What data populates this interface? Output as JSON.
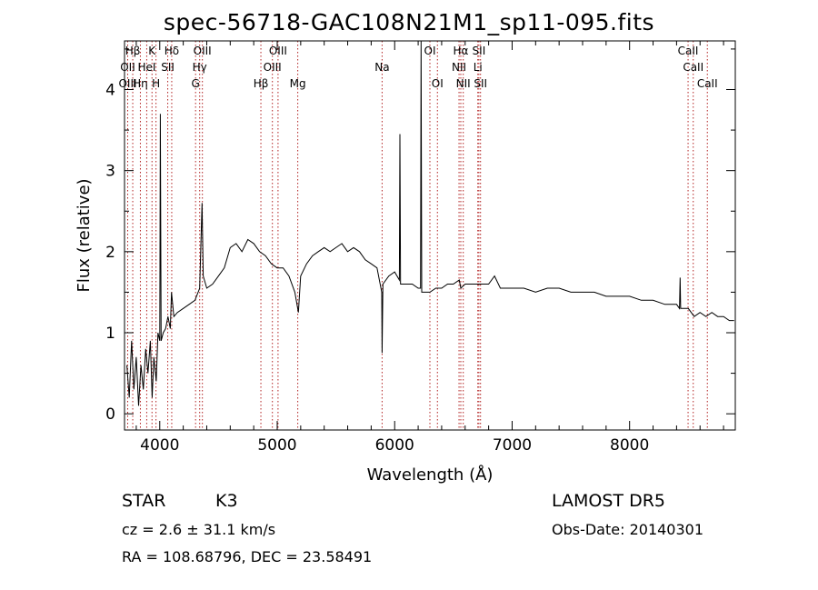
{
  "title": "spec-56718-GAC108N21M1_sp11-095.fits",
  "info": {
    "object_class": "STAR",
    "subclass": "K3",
    "survey": "LAMOST DR5",
    "cz": "cz = 2.6 ± 31.1 km/s",
    "obs_date": "Obs-Date: 20140301",
    "coords": "RA = 108.68796, DEC =  23.58491"
  },
  "colors": {
    "spectrum": "#000000",
    "lines": "#b22222",
    "axes": "#000000"
  },
  "chart_data": {
    "type": "line",
    "title": "spec-56718-GAC108N21M1_sp11-095.fits",
    "xlabel": "Wavelength (Å)",
    "ylabel": "Flux (relative)",
    "xlim": [
      3700,
      8900
    ],
    "ylim": [
      -0.2,
      4.6
    ],
    "xticks": [
      4000,
      5000,
      6000,
      7000,
      8000
    ],
    "yticks": [
      0,
      1,
      2,
      3,
      4
    ],
    "grid": false,
    "series": [
      {
        "values": [
          [
            3720,
            0.6
          ],
          [
            3740,
            0.2
          ],
          [
            3760,
            0.9
          ],
          [
            3780,
            0.3
          ],
          [
            3800,
            0.7
          ],
          [
            3820,
            0.1
          ],
          [
            3840,
            0.6
          ],
          [
            3860,
            0.3
          ],
          [
            3880,
            0.8
          ],
          [
            3900,
            0.5
          ],
          [
            3920,
            0.9
          ],
          [
            3935,
            0.2
          ],
          [
            3950,
            0.7
          ],
          [
            3970,
            0.4
          ],
          [
            3985,
            1.0
          ],
          [
            4000,
            0.9
          ],
          [
            4005,
            3.7
          ],
          [
            4012,
            0.9
          ],
          [
            4030,
            1.0
          ],
          [
            4050,
            1.05
          ],
          [
            4070,
            1.2
          ],
          [
            4090,
            1.05
          ],
          [
            4100,
            1.5
          ],
          [
            4120,
            1.2
          ],
          [
            4150,
            1.25
          ],
          [
            4200,
            1.3
          ],
          [
            4250,
            1.35
          ],
          [
            4300,
            1.4
          ],
          [
            4340,
            1.55
          ],
          [
            4360,
            2.6
          ],
          [
            4370,
            1.7
          ],
          [
            4400,
            1.55
          ],
          [
            4450,
            1.6
          ],
          [
            4500,
            1.7
          ],
          [
            4550,
            1.8
          ],
          [
            4600,
            2.05
          ],
          [
            4650,
            2.1
          ],
          [
            4700,
            2.0
          ],
          [
            4750,
            2.15
          ],
          [
            4800,
            2.1
          ],
          [
            4850,
            2.0
          ],
          [
            4900,
            1.95
          ],
          [
            4950,
            1.85
          ],
          [
            5000,
            1.8
          ],
          [
            5050,
            1.8
          ],
          [
            5100,
            1.7
          ],
          [
            5150,
            1.5
          ],
          [
            5180,
            1.25
          ],
          [
            5200,
            1.7
          ],
          [
            5250,
            1.85
          ],
          [
            5300,
            1.95
          ],
          [
            5350,
            2.0
          ],
          [
            5400,
            2.05
          ],
          [
            5450,
            2.0
          ],
          [
            5500,
            2.05
          ],
          [
            5550,
            2.1
          ],
          [
            5600,
            2.0
          ],
          [
            5650,
            2.05
          ],
          [
            5700,
            2.0
          ],
          [
            5750,
            1.9
          ],
          [
            5800,
            1.85
          ],
          [
            5850,
            1.8
          ],
          [
            5890,
            1.5
          ],
          [
            5893,
            0.75
          ],
          [
            5900,
            1.6
          ],
          [
            5950,
            1.7
          ],
          [
            6000,
            1.75
          ],
          [
            6040,
            1.65
          ],
          [
            6045,
            3.45
          ],
          [
            6050,
            1.6
          ],
          [
            6100,
            1.6
          ],
          [
            6150,
            1.6
          ],
          [
            6200,
            1.55
          ],
          [
            6220,
            1.55
          ],
          [
            6225,
            4.6
          ],
          [
            6230,
            1.5
          ],
          [
            6250,
            1.5
          ],
          [
            6300,
            1.5
          ],
          [
            6350,
            1.55
          ],
          [
            6400,
            1.55
          ],
          [
            6450,
            1.6
          ],
          [
            6500,
            1.6
          ],
          [
            6550,
            1.65
          ],
          [
            6563,
            1.55
          ],
          [
            6600,
            1.6
          ],
          [
            6650,
            1.6
          ],
          [
            6700,
            1.6
          ],
          [
            6750,
            1.6
          ],
          [
            6800,
            1.6
          ],
          [
            6850,
            1.7
          ],
          [
            6900,
            1.55
          ],
          [
            7000,
            1.55
          ],
          [
            7100,
            1.55
          ],
          [
            7200,
            1.5
          ],
          [
            7300,
            1.55
          ],
          [
            7400,
            1.55
          ],
          [
            7500,
            1.5
          ],
          [
            7600,
            1.5
          ],
          [
            7700,
            1.5
          ],
          [
            7800,
            1.45
          ],
          [
            7900,
            1.45
          ],
          [
            8000,
            1.45
          ],
          [
            8100,
            1.4
          ],
          [
            8200,
            1.4
          ],
          [
            8300,
            1.35
          ],
          [
            8400,
            1.35
          ],
          [
            8425,
            1.3
          ],
          [
            8430,
            1.68
          ],
          [
            8435,
            1.3
          ],
          [
            8500,
            1.3
          ],
          [
            8550,
            1.2
          ],
          [
            8600,
            1.25
          ],
          [
            8650,
            1.2
          ],
          [
            8700,
            1.25
          ],
          [
            8750,
            1.2
          ],
          [
            8800,
            1.2
          ],
          [
            8850,
            1.15
          ],
          [
            8890,
            1.15
          ]
        ]
      }
    ],
    "spectral_lines": [
      {
        "label": "Hβ",
        "x": 3770,
        "row": 0
      },
      {
        "label": "OII",
        "x": 3727,
        "row": 1
      },
      {
        "label": "OIII",
        "x": 3727,
        "row": 2
      },
      {
        "label": "Hη",
        "x": 3835,
        "row": 2
      },
      {
        "label": "K",
        "x": 3934,
        "row": 0
      },
      {
        "label": "HeI",
        "x": 3889,
        "row": 1
      },
      {
        "label": "H",
        "x": 3968,
        "row": 2
      },
      {
        "label": "Hδ",
        "x": 4102,
        "row": 0
      },
      {
        "label": "SII",
        "x": 4068,
        "row": 1
      },
      {
        "label": "OIII",
        "x": 4363,
        "row": 0
      },
      {
        "label": "Hγ",
        "x": 4340,
        "row": 1
      },
      {
        "label": "G",
        "x": 4305,
        "row": 2
      },
      {
        "label": "OIII",
        "x": 5007,
        "row": 0
      },
      {
        "label": "OIII",
        "x": 4959,
        "row": 1
      },
      {
        "label": "Hβ",
        "x": 4861,
        "row": 2
      },
      {
        "label": "Mg",
        "x": 5175,
        "row": 2
      },
      {
        "label": "Na",
        "x": 5893,
        "row": 1
      },
      {
        "label": "OI",
        "x": 6300,
        "row": 0
      },
      {
        "label": "OI",
        "x": 6364,
        "row": 2
      },
      {
        "label": "Hα",
        "x": 6563,
        "row": 0
      },
      {
        "label": "NII",
        "x": 6548,
        "row": 1
      },
      {
        "label": "NII",
        "x": 6584,
        "row": 2
      },
      {
        "label": "SII",
        "x": 6717,
        "row": 0
      },
      {
        "label": "Li",
        "x": 6708,
        "row": 1
      },
      {
        "label": "SII",
        "x": 6731,
        "row": 2
      },
      {
        "label": "CaII",
        "x": 8498,
        "row": 0
      },
      {
        "label": "CaII",
        "x": 8542,
        "row": 1
      },
      {
        "label": "CaII",
        "x": 8662,
        "row": 2
      }
    ]
  }
}
